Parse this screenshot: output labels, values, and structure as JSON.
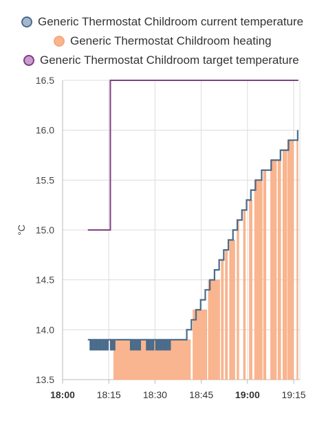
{
  "chart_data": {
    "type": "line",
    "ylabel": "°C",
    "ylim": [
      13.5,
      16.5
    ],
    "yticks": [
      "13.5",
      "14.0",
      "14.5",
      "15.0",
      "15.5",
      "16.0",
      "16.5"
    ],
    "xlim": [
      "18:00",
      "19:17"
    ],
    "xticks": [
      {
        "label": "18:00",
        "minute": 0,
        "bold": true
      },
      {
        "label": "18:15",
        "minute": 15,
        "bold": false
      },
      {
        "label": "18:30",
        "minute": 30,
        "bold": false
      },
      {
        "label": "18:45",
        "minute": 45,
        "bold": false
      },
      {
        "label": "19:00",
        "minute": 60,
        "bold": true
      },
      {
        "label": "19:15",
        "minute": 75,
        "bold": false
      }
    ],
    "grid": true,
    "legend_position": "top",
    "series": [
      {
        "name": "Generic Thermostat Childroom current temperature",
        "color": "#4a6b8a",
        "fill": "#a3b7cd",
        "kind": "step",
        "points": [
          [
            8.2,
            13.9
          ],
          [
            9,
            13.8
          ],
          [
            9.4,
            13.9
          ],
          [
            9.8,
            13.8
          ],
          [
            10.3,
            13.9
          ],
          [
            10.6,
            13.8
          ],
          [
            11,
            13.9
          ],
          [
            11.4,
            13.8
          ],
          [
            11.9,
            13.9
          ],
          [
            12.3,
            13.8
          ],
          [
            12.8,
            13.9
          ],
          [
            13.3,
            13.8
          ],
          [
            13.8,
            13.9
          ],
          [
            14.2,
            13.8
          ],
          [
            14.7,
            13.9
          ],
          [
            15.6,
            13.8
          ],
          [
            16.0,
            13.9
          ],
          [
            16.4,
            13.8
          ],
          [
            16.9,
            13.9
          ],
          [
            22.1,
            13.8
          ],
          [
            22.5,
            13.9
          ],
          [
            22.9,
            13.8
          ],
          [
            23.4,
            13.9
          ],
          [
            23.9,
            13.8
          ],
          [
            24.4,
            13.9
          ],
          [
            24.8,
            13.8
          ],
          [
            25.2,
            13.9
          ],
          [
            27.3,
            13.8
          ],
          [
            27.7,
            13.9
          ],
          [
            28.1,
            13.8
          ],
          [
            28.6,
            13.9
          ],
          [
            29.1,
            13.8
          ],
          [
            29.5,
            13.9
          ],
          [
            30.3,
            13.8
          ],
          [
            30.7,
            13.9
          ],
          [
            31.1,
            13.8
          ],
          [
            31.5,
            13.9
          ],
          [
            31.9,
            13.8
          ],
          [
            32.3,
            13.9
          ],
          [
            32.8,
            13.8
          ],
          [
            33.2,
            13.9
          ],
          [
            33.6,
            13.8
          ],
          [
            34.0,
            13.9
          ],
          [
            34.5,
            13.8
          ],
          [
            34.9,
            13.9
          ],
          [
            40.3,
            14.0
          ],
          [
            41.8,
            14.1
          ],
          [
            43.3,
            14.2
          ],
          [
            44.8,
            14.3
          ],
          [
            46.3,
            14.4
          ],
          [
            47.8,
            14.5
          ],
          [
            49.3,
            14.6
          ],
          [
            50.8,
            14.7
          ],
          [
            52.3,
            14.8
          ],
          [
            53.8,
            14.9
          ],
          [
            55.3,
            15.0
          ],
          [
            56.7,
            15.1
          ],
          [
            58.2,
            15.2
          ],
          [
            59.7,
            15.3
          ],
          [
            61.1,
            15.4
          ],
          [
            62.6,
            15.5
          ],
          [
            64.6,
            15.6
          ],
          [
            67.7,
            15.7
          ],
          [
            70.7,
            15.8
          ],
          [
            73.3,
            15.9
          ],
          [
            76.3,
            16.0
          ]
        ]
      },
      {
        "name": "Generic Thermostat Childroom heating",
        "color": "#f7a97c",
        "fill": "#f9b58f",
        "kind": "on_periods",
        "intervals": [
          [
            16.6,
            41.5
          ],
          [
            42.3,
            46.8
          ],
          [
            47.3,
            51.0
          ],
          [
            51.5,
            52.2
          ],
          [
            52.8,
            53.5
          ],
          [
            54.2,
            55.9
          ],
          [
            56.6,
            57.2
          ],
          [
            58.7,
            59.3
          ],
          [
            60.6,
            61.5
          ],
          [
            62.3,
            64.8
          ],
          [
            65.2,
            66.0
          ],
          [
            67.5,
            69.4
          ],
          [
            69.9,
            70.8
          ],
          [
            71.5,
            72.7
          ],
          [
            73.0,
            74.9
          ],
          [
            76.0,
            76.4
          ]
        ]
      },
      {
        "name": "Generic Thermostat Childroom target temperature",
        "color": "#7e3f82",
        "fill": "#c99bd0",
        "kind": "step",
        "points": [
          [
            8.2,
            15.0
          ],
          [
            15.5,
            16.5
          ],
          [
            76.5,
            16.5
          ]
        ]
      }
    ]
  }
}
